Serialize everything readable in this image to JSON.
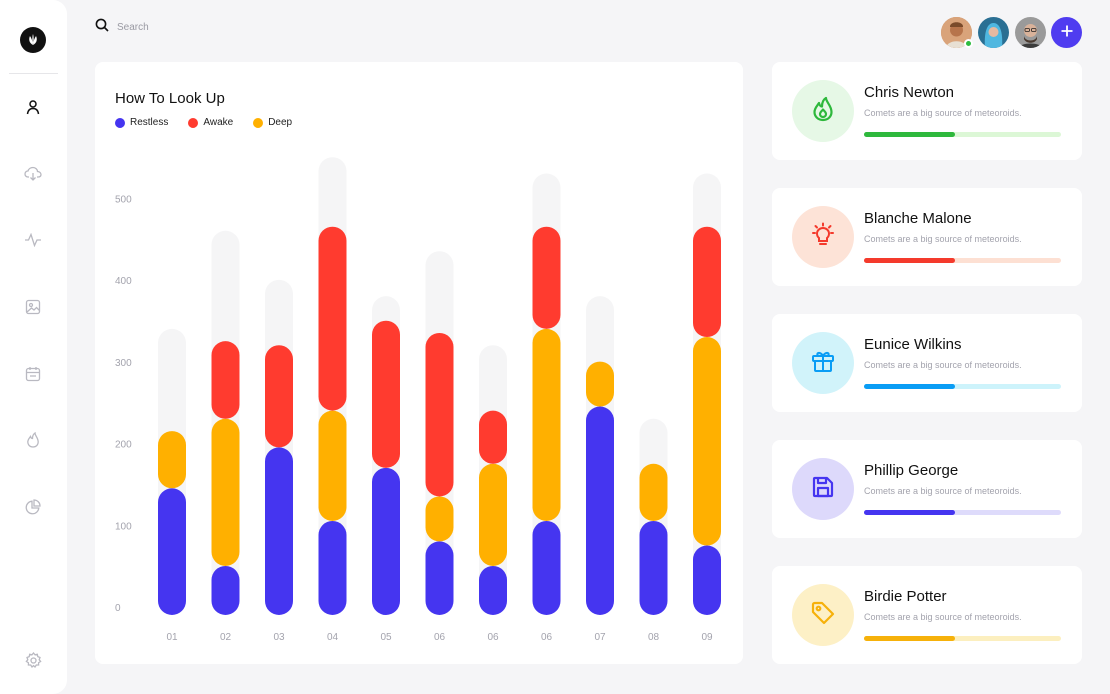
{
  "app": {
    "logo_icon": "leaf-icon"
  },
  "sidebar": {
    "items": [
      {
        "name": "user",
        "icon": "user-icon"
      },
      {
        "name": "cloud-download",
        "icon": "cloud-download-icon"
      },
      {
        "name": "activity",
        "icon": "activity-icon"
      },
      {
        "name": "image",
        "icon": "image-icon"
      },
      {
        "name": "calendar",
        "icon": "calendar-icon"
      },
      {
        "name": "flame",
        "icon": "flame-icon"
      },
      {
        "name": "pie-chart",
        "icon": "pie-chart-icon"
      }
    ],
    "settings_icon": "settings-icon"
  },
  "header": {
    "search": {
      "placeholder": "Search",
      "icon": "search-icon"
    },
    "add_icon": "plus-icon"
  },
  "chart": {
    "title": "How To Look Up",
    "legend": [
      {
        "label": "Restless",
        "color": "#4535f0"
      },
      {
        "label": "Awake",
        "color": "#ff3b2f"
      },
      {
        "label": "Deep",
        "color": "#ffb000"
      }
    ]
  },
  "chart_data": {
    "type": "bar",
    "stacked": true,
    "categories": [
      "01",
      "02",
      "03",
      "04",
      "05",
      "06",
      "06",
      "06",
      "07",
      "08",
      "09"
    ],
    "yticks": [
      0,
      100,
      200,
      300,
      400,
      500
    ],
    "ylim": [
      0,
      540
    ],
    "background_totals": [
      350,
      470,
      410,
      560,
      390,
      445,
      330,
      540,
      390,
      240,
      540
    ],
    "series": [
      {
        "name": "Restless",
        "color": "#4535f0",
        "values": [
          155,
          60,
          205,
          115,
          180,
          90,
          60,
          115,
          255,
          115,
          85
        ]
      },
      {
        "name": "Deep",
        "color": "#ffb000",
        "values": [
          70,
          180,
          0,
          135,
          0,
          55,
          125,
          235,
          55,
          70,
          255
        ]
      },
      {
        "name": "Awake",
        "color": "#ff3b2f",
        "values": [
          0,
          95,
          125,
          225,
          180,
          200,
          65,
          125,
          0,
          0,
          135
        ]
      }
    ],
    "grid": false
  },
  "profiles": [
    {
      "name": "Chris Newton",
      "description": "Comets are a big source of meteoroids.",
      "icon": "flame-icon",
      "accent": "#2eb83c",
      "soft": "#e6f8e6",
      "track": "#dcf7d6",
      "progress": 0.46
    },
    {
      "name": "Blanche Malone",
      "description": "Comets are a big source of meteoroids.",
      "icon": "lightbulb-icon",
      "accent": "#f43a2c",
      "soft": "#fde3d7",
      "track": "#fde0d3",
      "progress": 0.46
    },
    {
      "name": "Eunice Wilkins",
      "description": "Comets are a big source of meteoroids.",
      "icon": "gift-icon",
      "accent": "#0a9df5",
      "soft": "#d1f3fa",
      "track": "#cdf3fb",
      "progress": 0.46
    },
    {
      "name": "Phillip George",
      "description": "Comets are a big source of meteoroids.",
      "icon": "save-icon",
      "accent": "#4535f0",
      "soft": "#ddd9fb",
      "track": "#dedbfb",
      "progress": 0.46
    },
    {
      "name": "Birdie Potter",
      "description": "Comets are a big source of meteoroids.",
      "icon": "tag-icon",
      "accent": "#f6b10a",
      "soft": "#fdf0c6",
      "track": "#fcefbf",
      "progress": 0.46
    }
  ]
}
